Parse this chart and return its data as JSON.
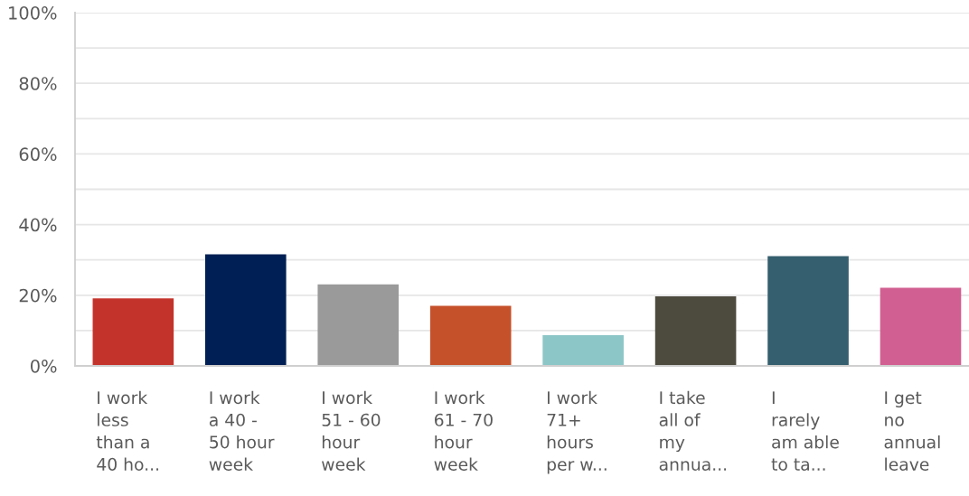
{
  "chart_data": {
    "type": "bar",
    "categories": [
      "I work\nless\nthan a\n40 ho...",
      "I work\na 40 -\n50 hour\nweek",
      "I work\n51 - 60\nhour\nweek",
      "I work\n61 - 70\nhour\nweek",
      "I work\n71+\nhours\nper w...",
      "I take\nall of\nmy\nannua...",
      "I\nrarely\nam able\nto ta...",
      "I get\nno\nannual\nleave"
    ],
    "values": [
      19.1,
      31.6,
      23.1,
      17.0,
      8.7,
      19.7,
      31.1,
      22.1
    ],
    "colors": [
      "#c4332b",
      "#001f54",
      "#9a9a9a",
      "#c5512a",
      "#8cc6c6",
      "#4d4a3e",
      "#355f6e",
      "#d25f91"
    ],
    "ylim": [
      0,
      100
    ],
    "yticks": [
      {
        "value": 0,
        "label": "0%"
      },
      {
        "value": 10,
        "label": null
      },
      {
        "value": 20,
        "label": "20%"
      },
      {
        "value": 30,
        "label": null
      },
      {
        "value": 40,
        "label": "40%"
      },
      {
        "value": 50,
        "label": null
      },
      {
        "value": 60,
        "label": "60%"
      },
      {
        "value": 70,
        "label": null
      },
      {
        "value": 80,
        "label": "80%"
      },
      {
        "value": 90,
        "label": null
      },
      {
        "value": 100,
        "label": "100%"
      }
    ],
    "grid": "y"
  }
}
